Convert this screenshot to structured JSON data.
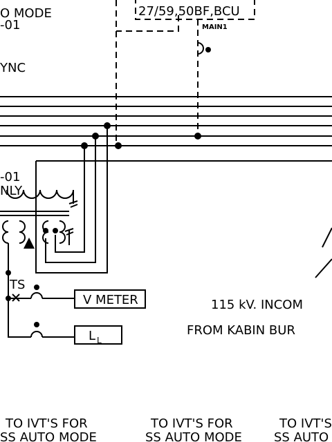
{
  "labels": {
    "top_left_mode": "O MODE",
    "top_left_code": "-01",
    "top_left_sync": "YNC",
    "relay_box": "27/59,50BF,BCU",
    "relay_tag": "MAIN1",
    "left_code": "-01",
    "left_only": "NLY",
    "ts": "TS",
    "v_meter": "V METER",
    "ll": {
      "text": "L",
      "subscript": "L"
    },
    "incoming_1": "115 kV. INCOM",
    "incoming_2": "FROM KABIN BUR",
    "ivt": [
      {
        "line1": "TO IVT'S FOR",
        "line2": "SS AUTO MODE"
      },
      {
        "line1": "TO IVT'S FOR",
        "line2": "SS AUTO MODE"
      },
      {
        "line1": "TO IVT'S",
        "line2": "SS AUTO"
      }
    ]
  }
}
